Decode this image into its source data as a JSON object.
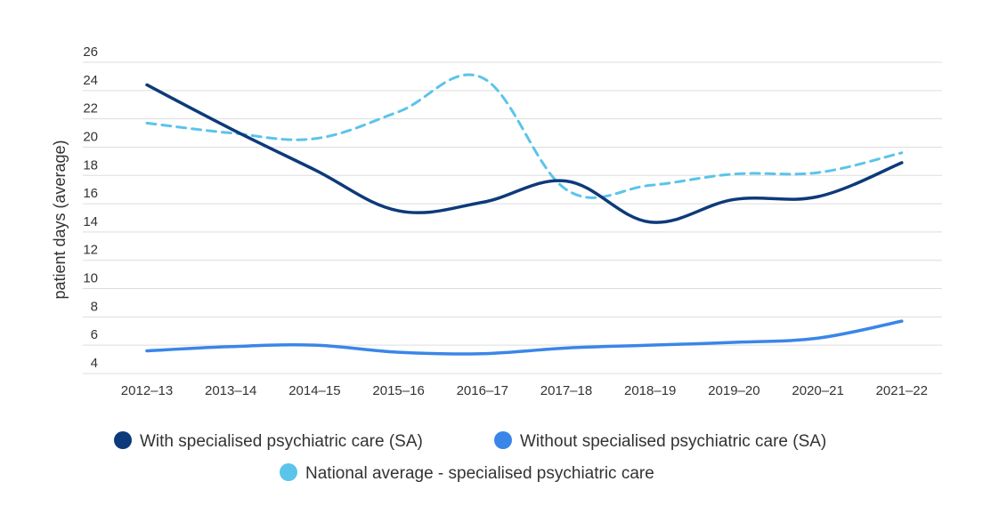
{
  "chart_data": {
    "type": "line",
    "title": "",
    "xlabel": "",
    "ylabel": "patient days (average)",
    "categories": [
      "2012–13",
      "2013–14",
      "2014–15",
      "2015–16",
      "2016–17",
      "2017–18",
      "2018–19",
      "2019–20",
      "2020–21",
      "2021–22"
    ],
    "yticks": [
      "4",
      "6",
      "8",
      "10",
      "12",
      "14",
      "16",
      "18",
      "20",
      "22",
      "24",
      "26"
    ],
    "ylim": [
      4,
      26
    ],
    "grid": true,
    "legend_position": "bottom",
    "series": [
      {
        "name": "With specialised psychiatric care (SA)",
        "color": "#0d3a7a",
        "dashed": false,
        "values": [
          24.4,
          21.3,
          18.4,
          15.5,
          16.1,
          17.6,
          14.7,
          16.3,
          16.5,
          18.9
        ]
      },
      {
        "name": "Without specialised psychiatric care (SA)",
        "color": "#3a86e8",
        "dashed": false,
        "values": [
          5.6,
          5.9,
          6.0,
          5.5,
          5.4,
          5.8,
          6.0,
          6.2,
          6.5,
          7.7
        ]
      },
      {
        "name": "National average - specialised psychiatric care",
        "color": "#5bc4ea",
        "dashed": true,
        "values": [
          21.7,
          21.0,
          20.6,
          22.5,
          24.9,
          17.0,
          17.3,
          18.1,
          18.2,
          19.6
        ]
      }
    ]
  }
}
